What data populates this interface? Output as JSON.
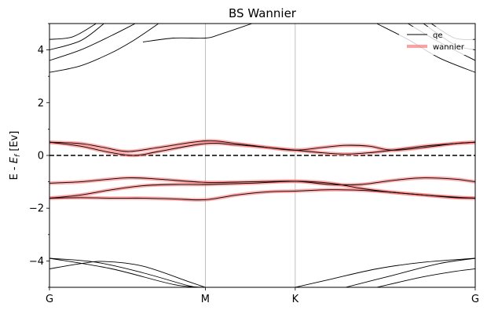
{
  "chart_data": {
    "type": "line",
    "title": "BS Wannier",
    "ylabel": "E - E_f [Ev]",
    "ylim": [
      -5,
      5
    ],
    "yticks": [
      -4,
      -2,
      0,
      2,
      4
    ],
    "xticks": [
      "G",
      "M",
      "K",
      "G"
    ],
    "kpath_positions": [
      0,
      1,
      1.577,
      2.732
    ],
    "fermi_level": 0,
    "grid": "vertical at high-symmetry points",
    "legend_placement": "top-right",
    "colors": {
      "qe": "#000000",
      "wannier": "#ff8080",
      "fermi": "#000000",
      "grid": "#b0b0b0"
    },
    "series": [
      {
        "name": "qe",
        "bands": [
          {
            "x": [
              0,
              0.4,
              0.8,
              1.0
            ],
            "y": [
              -3.9,
              -4.3,
              -4.9,
              -5.0
            ]
          },
          {
            "x": [
              0,
              0.3,
              0.6,
              0.9,
              1.0
            ],
            "y": [
              -3.9,
              -4.05,
              -4.45,
              -4.95,
              -5.0
            ]
          },
          {
            "x": [
              0,
              0.2,
              0.35,
              0.6,
              0.9,
              1.0
            ],
            "y": [
              -4.3,
              -4.1,
              -4.02,
              -4.2,
              -4.8,
              -5.0
            ]
          },
          {
            "x": [
              1.577,
              1.8,
              2.1,
              2.4,
              2.732
            ],
            "y": [
              -5.0,
              -4.7,
              -4.3,
              -4.05,
              -3.9
            ]
          },
          {
            "x": [
              1.9,
              2.2,
              2.5,
              2.732
            ],
            "y": [
              -5.0,
              -4.55,
              -4.1,
              -3.9
            ]
          },
          {
            "x": [
              2.1,
              2.4,
              2.6,
              2.732
            ],
            "y": [
              -5.0,
              -4.6,
              -4.4,
              -4.3
            ]
          },
          {
            "x": [
              0,
              0.2,
              0.4,
              0.55,
              0.7
            ],
            "y": [
              3.15,
              3.4,
              3.9,
              4.4,
              5.0
            ]
          },
          {
            "x": [
              0,
              0.2,
              0.4,
              0.55
            ],
            "y": [
              3.6,
              4.0,
              4.55,
              5.0
            ]
          },
          {
            "x": [
              0,
              0.2,
              0.35
            ],
            "y": [
              4.0,
              4.35,
              5.0
            ]
          },
          {
            "x": [
              0,
              0.15,
              0.3
            ],
            "y": [
              4.4,
              4.5,
              5.0
            ]
          },
          {
            "x": [
              0.6,
              0.8,
              1.0,
              1.1,
              1.3
            ],
            "y": [
              4.3,
              4.45,
              4.45,
              4.6,
              5.0
            ]
          },
          {
            "x": [
              2.1,
              2.3,
              2.5,
              2.732
            ],
            "y": [
              5.0,
              4.4,
              3.7,
              3.15
            ]
          },
          {
            "x": [
              2.3,
              2.5,
              2.732
            ],
            "y": [
              5.0,
              4.3,
              3.6
            ]
          },
          {
            "x": [
              2.4,
              2.6,
              2.732
            ],
            "y": [
              5.0,
              4.2,
              4.0
            ]
          },
          {
            "x": [
              2.45,
              2.6,
              2.732
            ],
            "y": [
              5.0,
              4.45,
              4.4
            ]
          },
          {
            "x": [
              0,
              0.2,
              0.35,
              0.5,
              0.7,
              1.0,
              1.2,
              1.4,
              1.577,
              1.75,
              1.9,
              2.05,
              2.2,
              2.4,
              2.6,
              2.732
            ],
            "y": [
              0.5,
              0.45,
              0.3,
              0.15,
              0.3,
              0.55,
              0.45,
              0.3,
              0.2,
              0.3,
              0.38,
              0.35,
              0.2,
              0.3,
              0.45,
              0.5
            ]
          },
          {
            "x": [
              0,
              0.2,
              0.4,
              0.55,
              0.7,
              1.0,
              1.2,
              1.4,
              1.577,
              1.75,
              1.9,
              2.05,
              2.2,
              2.4,
              2.6,
              2.732
            ],
            "y": [
              0.5,
              0.35,
              0.1,
              0.0,
              0.15,
              0.45,
              0.4,
              0.3,
              0.2,
              0.1,
              0.05,
              0.1,
              0.2,
              0.35,
              0.45,
              0.5
            ]
          },
          {
            "x": [
              0,
              0.2,
              0.5,
              0.7,
              1.0,
              1.3,
              1.577,
              1.8,
              2.0,
              2.2,
              2.4,
              2.6,
              2.732
            ],
            "y": [
              -1.05,
              -1.0,
              -0.85,
              -0.9,
              -1.02,
              -1.0,
              -0.98,
              -1.1,
              -1.1,
              -0.95,
              -0.85,
              -0.9,
              -1.0
            ]
          },
          {
            "x": [
              0,
              0.2,
              0.4,
              0.6,
              0.8,
              1.0,
              1.3,
              1.577,
              1.8,
              2.0,
              2.2,
              2.4,
              2.6,
              2.732
            ],
            "y": [
              -1.62,
              -1.5,
              -1.3,
              -1.15,
              -1.1,
              -1.1,
              -1.05,
              -0.98,
              -1.05,
              -1.25,
              -1.4,
              -1.5,
              -1.6,
              -1.62
            ]
          },
          {
            "x": [
              0,
              0.2,
              0.4,
              0.6,
              0.8,
              1.0,
              1.2,
              1.4,
              1.577,
              1.8,
              2.0,
              2.2,
              2.4,
              2.6,
              2.732
            ],
            "y": [
              -1.62,
              -1.6,
              -1.62,
              -1.62,
              -1.65,
              -1.68,
              -1.5,
              -1.38,
              -1.35,
              -1.3,
              -1.32,
              -1.4,
              -1.5,
              -1.58,
              -1.62
            ]
          }
        ]
      },
      {
        "name": "wannier",
        "bands": [
          {
            "x": [
              0,
              0.2,
              0.35,
              0.5,
              0.7,
              1.0,
              1.2,
              1.4,
              1.577,
              1.75,
              1.9,
              2.05,
              2.2,
              2.4,
              2.6,
              2.732
            ],
            "y": [
              0.5,
              0.45,
              0.3,
              0.15,
              0.3,
              0.55,
              0.45,
              0.3,
              0.2,
              0.3,
              0.38,
              0.35,
              0.2,
              0.3,
              0.45,
              0.5
            ]
          },
          {
            "x": [
              0,
              0.2,
              0.4,
              0.55,
              0.7,
              1.0,
              1.2,
              1.4,
              1.577,
              1.75,
              1.9,
              2.05,
              2.2,
              2.4,
              2.6,
              2.732
            ],
            "y": [
              0.5,
              0.35,
              0.1,
              0.0,
              0.15,
              0.45,
              0.4,
              0.3,
              0.2,
              0.1,
              0.05,
              0.1,
              0.2,
              0.35,
              0.45,
              0.5
            ]
          },
          {
            "x": [
              0,
              0.2,
              0.5,
              0.7,
              1.0,
              1.3,
              1.577,
              1.8,
              2.0,
              2.2,
              2.4,
              2.6,
              2.732
            ],
            "y": [
              -1.05,
              -1.0,
              -0.85,
              -0.9,
              -1.02,
              -1.0,
              -0.98,
              -1.1,
              -1.1,
              -0.95,
              -0.85,
              -0.9,
              -1.0
            ]
          },
          {
            "x": [
              0,
              0.2,
              0.4,
              0.6,
              0.8,
              1.0,
              1.3,
              1.577,
              1.8,
              2.0,
              2.2,
              2.4,
              2.6,
              2.732
            ],
            "y": [
              -1.62,
              -1.5,
              -1.3,
              -1.15,
              -1.1,
              -1.1,
              -1.05,
              -0.98,
              -1.05,
              -1.25,
              -1.4,
              -1.5,
              -1.6,
              -1.62
            ]
          },
          {
            "x": [
              0,
              0.2,
              0.4,
              0.6,
              0.8,
              1.0,
              1.2,
              1.4,
              1.577,
              1.8,
              2.0,
              2.2,
              2.4,
              2.6,
              2.732
            ],
            "y": [
              -1.62,
              -1.6,
              -1.62,
              -1.62,
              -1.65,
              -1.68,
              -1.5,
              -1.38,
              -1.35,
              -1.3,
              -1.32,
              -1.4,
              -1.5,
              -1.58,
              -1.62
            ]
          }
        ]
      }
    ]
  }
}
